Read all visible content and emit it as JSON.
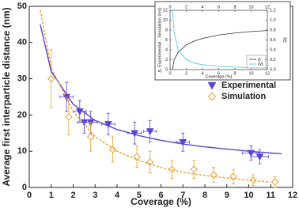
{
  "chart_data": [
    {
      "type": "scatter",
      "xlabel": "Coverage (%)",
      "ylabel": "Average first interparticle distance (nm)",
      "xlim": [
        0,
        12
      ],
      "xticks": [
        0,
        1,
        2,
        3,
        4,
        5,
        6,
        7,
        8,
        9,
        10,
        11,
        12
      ],
      "ylim": [
        0,
        50
      ],
      "yticks": [
        0,
        10,
        20,
        30,
        40,
        50
      ],
      "legend": "upper right",
      "series": [
        {
          "name": "Experimental",
          "color": "#5a44d8",
          "marker": "triangle-down",
          "x": [
            1.7,
            2.3,
            2.5,
            2.8,
            3.6,
            4.8,
            5.5,
            7.0,
            10.1,
            10.5
          ],
          "values": [
            25,
            21,
            18,
            18,
            17.5,
            15,
            15.5,
            12.5,
            9.5,
            8.5
          ],
          "xerr": [
            0.3,
            0.3,
            0.3,
            0.3,
            0.3,
            0.3,
            0.3,
            0.3,
            0.4,
            0.4
          ],
          "yerr": [
            4,
            3,
            3,
            3,
            3,
            3,
            3,
            2.5,
            2,
            2
          ]
        },
        {
          "name": "Simulation",
          "color": "#e8a030",
          "marker": "diamond",
          "x": [
            1.0,
            1.8,
            2.8,
            3.8,
            4.9,
            5.5,
            6.5,
            7.5,
            8.4,
            9.3,
            10.2,
            11.2
          ],
          "values": [
            30,
            19.5,
            14,
            10.5,
            8.5,
            7,
            5,
            5,
            3.5,
            3,
            2,
            1.5
          ],
          "yerr": [
            8,
            5,
            4,
            3.5,
            3,
            3,
            2.5,
            2.5,
            2,
            2,
            1.5,
            1.5
          ]
        },
        {
          "color": "#5a44d8",
          "style": "solid",
          "x": [
            0.5,
            1,
            2,
            3,
            4,
            5,
            6,
            7,
            8,
            9,
            10,
            11,
            11.5
          ],
          "values": [
            45,
            32,
            23,
            18.5,
            16,
            14.3,
            13,
            12,
            11.2,
            10.6,
            10,
            9.5,
            9.3
          ]
        },
        {
          "color": "#e8a030",
          "style": "dotted",
          "x": [
            0.5,
            1,
            2,
            3,
            4,
            5,
            6,
            7,
            8,
            9,
            10,
            11
          ],
          "values": [
            49,
            33,
            21,
            14,
            10,
            7.5,
            5.5,
            4.2,
            3.3,
            2.6,
            2,
            1.5
          ]
        }
      ]
    },
    {
      "type": "line",
      "xlabel": "Coverage (%)",
      "ylabel": "Δ: Experimental - Simulation (nm)",
      "y2label": "δΔ",
      "xlim": [
        0,
        12
      ],
      "xticks": [
        0,
        2,
        4,
        6,
        8,
        10,
        12
      ],
      "ylim": [
        0,
        12
      ],
      "yticks": [
        0,
        2,
        4,
        6,
        8,
        10,
        12
      ],
      "y2lim": [
        0,
        1.2
      ],
      "y2ticks": [
        {
          "value": 0,
          "label": "0.0"
        },
        0.2,
        0.4,
        0.6,
        0.8,
        {
          "value": 1,
          "label": "1.0"
        },
        1.2
      ],
      "legend": "lower right",
      "series": [
        {
          "name": "Δ",
          "color": "#333333",
          "x": [
            0.3,
            0.5,
            1,
            2,
            3,
            4,
            6,
            8,
            10,
            12
          ],
          "values": [
            0,
            2,
            3.5,
            5,
            5.8,
            6.3,
            7,
            7.4,
            7.7,
            7.9
          ]
        },
        {
          "name": "δΔ",
          "color": "#3cc8d8",
          "axis": "y2",
          "x": [
            0.3,
            0.5,
            1,
            2,
            3,
            4,
            6,
            8,
            10,
            12
          ],
          "values": [
            1.2,
            0.75,
            0.4,
            0.2,
            0.13,
            0.1,
            0.07,
            0.05,
            0.04,
            0.035
          ]
        }
      ]
    }
  ]
}
